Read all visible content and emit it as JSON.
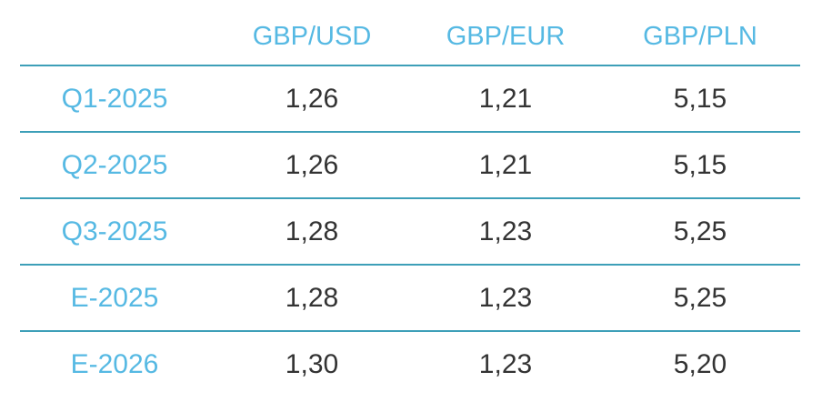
{
  "table": {
    "header": [
      "GBP/USD",
      "GBP/EUR",
      "GBP/PLN"
    ],
    "rows": [
      [
        "Q1-2025",
        "1,26",
        "1,21",
        "5,15"
      ],
      [
        "Q2-2025",
        "1,26",
        "1,21",
        "5,15"
      ],
      [
        "Q3-2025",
        "1,28",
        "1,23",
        "5,25"
      ],
      [
        "E-2025",
        "1,28",
        "1,23",
        "5,25"
      ],
      [
        "E-2026",
        "1,30",
        "1,23",
        "5,20"
      ]
    ]
  }
}
